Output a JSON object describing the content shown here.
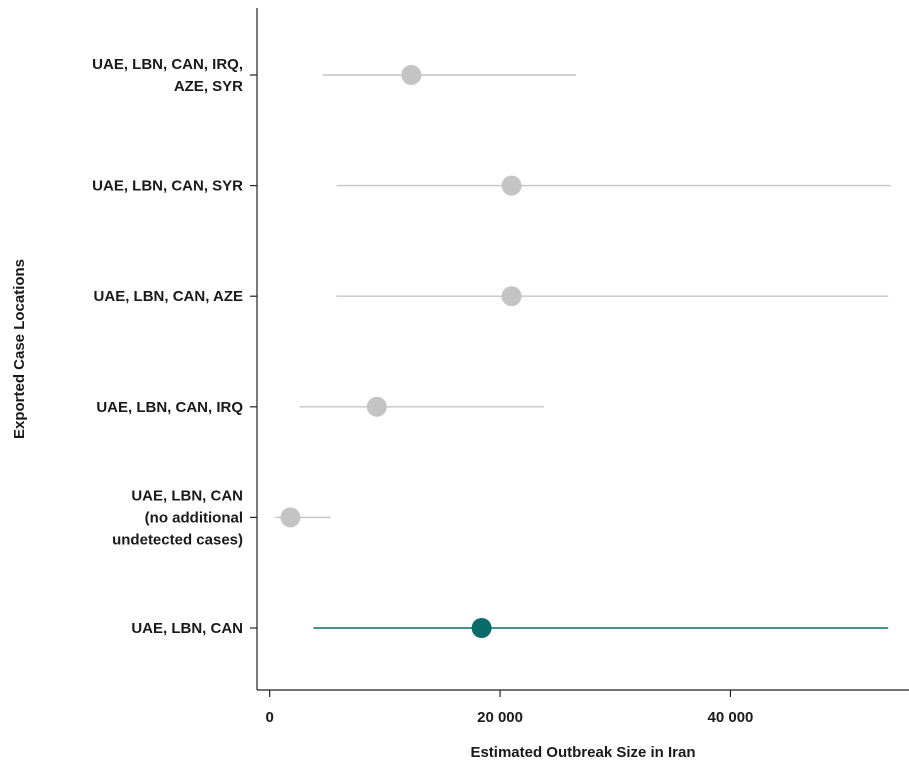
{
  "chart_data": {
    "type": "scatter",
    "subtype": "forest-plot",
    "xlabel": "Estimated Outbreak Size in Iran",
    "ylabel": "Exported Case Locations",
    "xlim": [
      -1100,
      55500
    ],
    "xticks": [
      0,
      20000,
      40000
    ],
    "xtick_labels": [
      "0",
      "20 000",
      "40 000"
    ],
    "grid": false,
    "legend": "none",
    "colors": {
      "default": "#c4c4c4",
      "highlight": "#0b6b68",
      "axis": "#222222"
    },
    "categories": [
      {
        "label_lines": [
          "UAE, LBN, CAN, IRQ,",
          "AZE, SYR"
        ],
        "estimate": 12300,
        "lower": 4600,
        "upper": 26600,
        "highlight": false
      },
      {
        "label_lines": [
          "UAE, LBN, CAN, SYR"
        ],
        "estimate": 21000,
        "lower": 5800,
        "upper": 53900,
        "highlight": false
      },
      {
        "label_lines": [
          "UAE, LBN, CAN, AZE"
        ],
        "estimate": 21000,
        "lower": 5800,
        "upper": 53700,
        "highlight": false
      },
      {
        "label_lines": [
          "UAE, LBN, CAN, IRQ"
        ],
        "estimate": 9300,
        "lower": 2600,
        "upper": 23800,
        "highlight": false
      },
      {
        "label_lines": [
          "UAE, LBN, CAN",
          "(no additional",
          "undetected cases)"
        ],
        "estimate": 1800,
        "lower": 500,
        "upper": 5300,
        "highlight": false
      },
      {
        "label_lines": [
          "UAE, LBN, CAN"
        ],
        "estimate": 18400,
        "lower": 3800,
        "upper": 53700,
        "highlight": true
      }
    ]
  }
}
